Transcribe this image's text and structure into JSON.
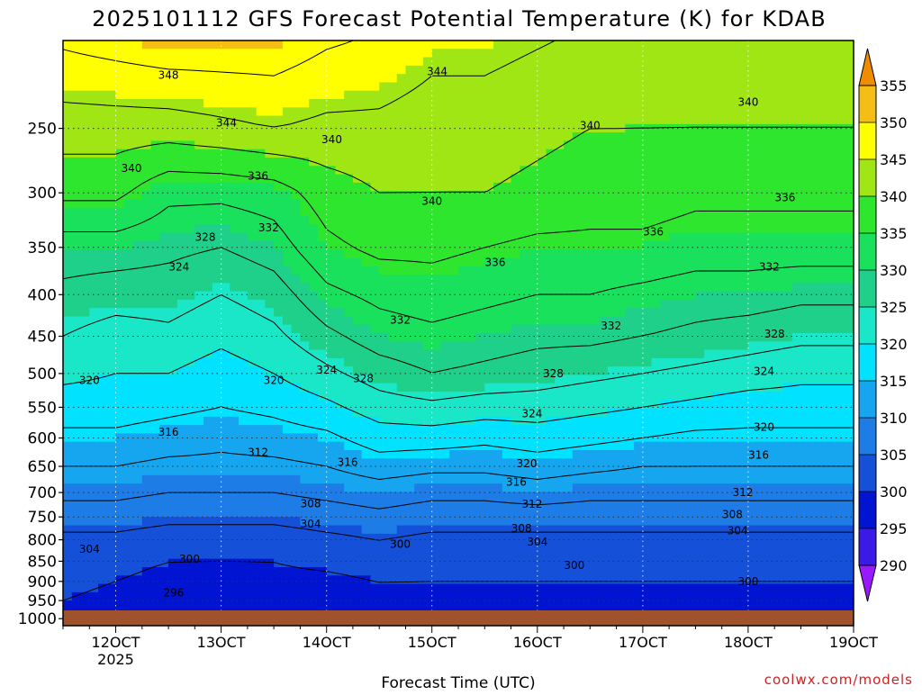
{
  "title": "2025101112 GFS Forecast Potential Temperature (K) for KDAB",
  "credit": "coolwx.com/models",
  "chart_data": {
    "type": "contour",
    "title": "2025101112 GFS Forecast Potential Temperature (K) for KDAB",
    "xlabel": "Forecast Time (UTC)",
    "ylabel": "",
    "x_ticks": [
      "12OCT",
      "13OCT",
      "14OCT",
      "15OCT",
      "16OCT",
      "17OCT",
      "18OCT",
      "19OCT"
    ],
    "x_year_label": "2025",
    "x_range_days": [
      11.5,
      19.0
    ],
    "y_ticks": [
      250,
      300,
      350,
      400,
      450,
      500,
      550,
      600,
      650,
      700,
      750,
      800,
      850,
      900,
      950,
      1000
    ],
    "y_range_hpa": [
      1020,
      195
    ],
    "y_scale": "log-pressure",
    "grid": true,
    "colorbar": {
      "levels": [
        290,
        295,
        300,
        305,
        310,
        315,
        320,
        325,
        330,
        335,
        340,
        345,
        350,
        355
      ],
      "colors": [
        "#9a1aff",
        "#3c1ae6",
        "#0014d2",
        "#1450d8",
        "#1e7ce6",
        "#16a6f0",
        "#00e2ff",
        "#1ae6c8",
        "#1ed08a",
        "#1ae15c",
        "#2ee62e",
        "#a0e614",
        "#ffff00",
        "#f5be14",
        "#f08c00"
      ]
    },
    "surface_bar_color": "#a0522d",
    "contour_interval": 4,
    "profiles": [
      {
        "day": 11.5,
        "p": [
          1000,
          950,
          900,
          850,
          800,
          750,
          700,
          650,
          600,
          550,
          500,
          450,
          400,
          350,
          300,
          250,
          200
        ],
        "theta": [
          299,
          300,
          301,
          302,
          303,
          306,
          309,
          312,
          315,
          318,
          321,
          324,
          327,
          330,
          337,
          342,
          348
        ]
      },
      {
        "day": 12.0,
        "p": [
          1000,
          950,
          900,
          850,
          800,
          750,
          700,
          650,
          600,
          550,
          500,
          450,
          400,
          350,
          300,
          250,
          200
        ],
        "theta": [
          298,
          299,
          300,
          301,
          303,
          306,
          309,
          312,
          315,
          318,
          320,
          322,
          326,
          330,
          337,
          342,
          349
        ]
      },
      {
        "day": 12.5,
        "p": [
          1000,
          950,
          900,
          850,
          800,
          750,
          700,
          650,
          600,
          550,
          500,
          450,
          400,
          350,
          300,
          250,
          200
        ],
        "theta": [
          296,
          298,
          299,
          300,
          302,
          305,
          308,
          311,
          314,
          317,
          320,
          323,
          326,
          329,
          333,
          342,
          350
        ]
      },
      {
        "day": 13.0,
        "p": [
          1000,
          950,
          900,
          850,
          800,
          750,
          700,
          650,
          600,
          550,
          500,
          450,
          400,
          350,
          300,
          250,
          200
        ],
        "theta": [
          296,
          297,
          298,
          300,
          302,
          305,
          308,
          311,
          313,
          316,
          318,
          321,
          324,
          328,
          333,
          343,
          350
        ]
      },
      {
        "day": 13.5,
        "p": [
          1000,
          950,
          900,
          850,
          800,
          750,
          700,
          650,
          600,
          550,
          500,
          450,
          400,
          350,
          300,
          250,
          200
        ],
        "theta": [
          297,
          298,
          299,
          300,
          302,
          305,
          308,
          311,
          314,
          317,
          320,
          323,
          326,
          330,
          334,
          344,
          350
        ]
      },
      {
        "day": 14.0,
        "p": [
          1000,
          950,
          900,
          850,
          800,
          750,
          700,
          650,
          600,
          550,
          500,
          450,
          400,
          350,
          300,
          250,
          200
        ],
        "theta": [
          297,
          298,
          299,
          301,
          303,
          306,
          309,
          312,
          315,
          319,
          323,
          327,
          331,
          335,
          338,
          343,
          348
        ]
      },
      {
        "day": 14.5,
        "p": [
          1000,
          950,
          900,
          850,
          800,
          750,
          700,
          650,
          600,
          550,
          500,
          450,
          400,
          350,
          300,
          250,
          200
        ],
        "theta": [
          298,
          299,
          300,
          302,
          304,
          307,
          310,
          314,
          318,
          322,
          326,
          330,
          333,
          337,
          340,
          343,
          347
        ]
      },
      {
        "day": 15.0,
        "p": [
          1000,
          950,
          900,
          850,
          800,
          750,
          700,
          650,
          600,
          550,
          500,
          450,
          400,
          350,
          300,
          250,
          200
        ],
        "theta": [
          298,
          299,
          300,
          301,
          303,
          306,
          309,
          313,
          318,
          323,
          328,
          331,
          334,
          337,
          340,
          342,
          345
        ]
      },
      {
        "day": 15.5,
        "p": [
          1000,
          950,
          900,
          850,
          800,
          750,
          700,
          650,
          600,
          550,
          500,
          450,
          400,
          350,
          300,
          250,
          200
        ],
        "theta": [
          298,
          299,
          300,
          301,
          303,
          306,
          309,
          313,
          317,
          322,
          327,
          330,
          333,
          336,
          340,
          342,
          345
        ]
      },
      {
        "day": 16.0,
        "p": [
          1000,
          950,
          900,
          850,
          800,
          750,
          700,
          650,
          600,
          550,
          500,
          450,
          400,
          350,
          300,
          250,
          200
        ],
        "theta": [
          298,
          299,
          300,
          301,
          303,
          306,
          310,
          314,
          318,
          322,
          326,
          329,
          332,
          335,
          339,
          341,
          344
        ]
      },
      {
        "day": 16.5,
        "p": [
          1000,
          950,
          900,
          850,
          800,
          750,
          700,
          650,
          600,
          550,
          500,
          450,
          400,
          350,
          300,
          250,
          200
        ],
        "theta": [
          298,
          299,
          300,
          301,
          303,
          306,
          309,
          313,
          317,
          321,
          325,
          329,
          332,
          335,
          338,
          340,
          343
        ]
      },
      {
        "day": 17.0,
        "p": [
          1000,
          950,
          900,
          850,
          800,
          750,
          700,
          650,
          600,
          550,
          500,
          450,
          400,
          350,
          300,
          250,
          200
        ],
        "theta": [
          298,
          299,
          300,
          301,
          303,
          306,
          309,
          312,
          316,
          320,
          324,
          328,
          331,
          335,
          338,
          340,
          342
        ]
      },
      {
        "day": 17.5,
        "p": [
          1000,
          950,
          900,
          850,
          800,
          750,
          700,
          650,
          600,
          550,
          500,
          450,
          400,
          350,
          300,
          250,
          200
        ],
        "theta": [
          298,
          299,
          300,
          301,
          303,
          306,
          309,
          312,
          315,
          319,
          323,
          327,
          330,
          334,
          337,
          340,
          342
        ]
      },
      {
        "day": 18.0,
        "p": [
          1000,
          950,
          900,
          850,
          800,
          750,
          700,
          650,
          600,
          550,
          500,
          450,
          400,
          350,
          300,
          250,
          200
        ],
        "theta": [
          298,
          299,
          300,
          301,
          303,
          306,
          309,
          312,
          315,
          318,
          322,
          326,
          330,
          334,
          337,
          340,
          342
        ]
      },
      {
        "day": 18.5,
        "p": [
          1000,
          950,
          900,
          850,
          800,
          750,
          700,
          650,
          600,
          550,
          500,
          450,
          400,
          350,
          300,
          250,
          200
        ],
        "theta": [
          298,
          299,
          300,
          301,
          303,
          306,
          309,
          312,
          315,
          318,
          321,
          325,
          329,
          334,
          337,
          340,
          342
        ]
      },
      {
        "day": 19.0,
        "p": [
          1000,
          950,
          900,
          850,
          800,
          750,
          700,
          650,
          600,
          550,
          500,
          450,
          400,
          350,
          300,
          250,
          200
        ],
        "theta": [
          298,
          299,
          300,
          301,
          303,
          306,
          309,
          312,
          315,
          318,
          321,
          325,
          329,
          334,
          337,
          340,
          342
        ]
      }
    ],
    "contour_labels": [
      {
        "text": "348",
        "day": 12.5,
        "p": 215
      },
      {
        "text": "344",
        "day": 13.05,
        "p": 246
      },
      {
        "text": "344",
        "day": 15.05,
        "p": 213
      },
      {
        "text": "340",
        "day": 12.15,
        "p": 280
      },
      {
        "text": "340",
        "day": 14.05,
        "p": 258
      },
      {
        "text": "340",
        "day": 15.0,
        "p": 307
      },
      {
        "text": "340",
        "day": 16.5,
        "p": 248
      },
      {
        "text": "340",
        "day": 18.0,
        "p": 232
      },
      {
        "text": "336",
        "day": 13.35,
        "p": 286
      },
      {
        "text": "336",
        "day": 15.6,
        "p": 365
      },
      {
        "text": "336",
        "day": 17.1,
        "p": 335
      },
      {
        "text": "336",
        "day": 18.35,
        "p": 304
      },
      {
        "text": "332",
        "day": 13.45,
        "p": 331
      },
      {
        "text": "332",
        "day": 14.7,
        "p": 430
      },
      {
        "text": "332",
        "day": 16.7,
        "p": 437
      },
      {
        "text": "332",
        "day": 18.2,
        "p": 370
      },
      {
        "text": "328",
        "day": 12.85,
        "p": 340
      },
      {
        "text": "328",
        "day": 14.35,
        "p": 507
      },
      {
        "text": "328",
        "day": 16.15,
        "p": 500
      },
      {
        "text": "328",
        "day": 18.25,
        "p": 447
      },
      {
        "text": "324",
        "day": 12.6,
        "p": 370
      },
      {
        "text": "324",
        "day": 14.0,
        "p": 495
      },
      {
        "text": "324",
        "day": 15.95,
        "p": 560
      },
      {
        "text": "324",
        "day": 18.15,
        "p": 497
      },
      {
        "text": "320",
        "day": 11.75,
        "p": 510
      },
      {
        "text": "320",
        "day": 13.5,
        "p": 510
      },
      {
        "text": "320",
        "day": 15.9,
        "p": 645
      },
      {
        "text": "320",
        "day": 18.15,
        "p": 582
      },
      {
        "text": "316",
        "day": 12.5,
        "p": 590
      },
      {
        "text": "316",
        "day": 14.2,
        "p": 643
      },
      {
        "text": "316",
        "day": 15.8,
        "p": 680
      },
      {
        "text": "316",
        "day": 18.1,
        "p": 630
      },
      {
        "text": "312",
        "day": 13.35,
        "p": 625
      },
      {
        "text": "312",
        "day": 15.95,
        "p": 723
      },
      {
        "text": "312",
        "day": 17.95,
        "p": 700
      },
      {
        "text": "308",
        "day": 13.85,
        "p": 722
      },
      {
        "text": "308",
        "day": 15.85,
        "p": 775
      },
      {
        "text": "308",
        "day": 17.85,
        "p": 745
      },
      {
        "text": "304",
        "day": 11.75,
        "p": 822
      },
      {
        "text": "304",
        "day": 13.85,
        "p": 765
      },
      {
        "text": "304",
        "day": 16.0,
        "p": 805
      },
      {
        "text": "304",
        "day": 17.9,
        "p": 780
      },
      {
        "text": "300",
        "day": 12.7,
        "p": 845
      },
      {
        "text": "300",
        "day": 14.7,
        "p": 810
      },
      {
        "text": "300",
        "day": 16.35,
        "p": 860
      },
      {
        "text": "300",
        "day": 18.0,
        "p": 900
      },
      {
        "text": "296",
        "day": 12.55,
        "p": 930
      }
    ]
  }
}
